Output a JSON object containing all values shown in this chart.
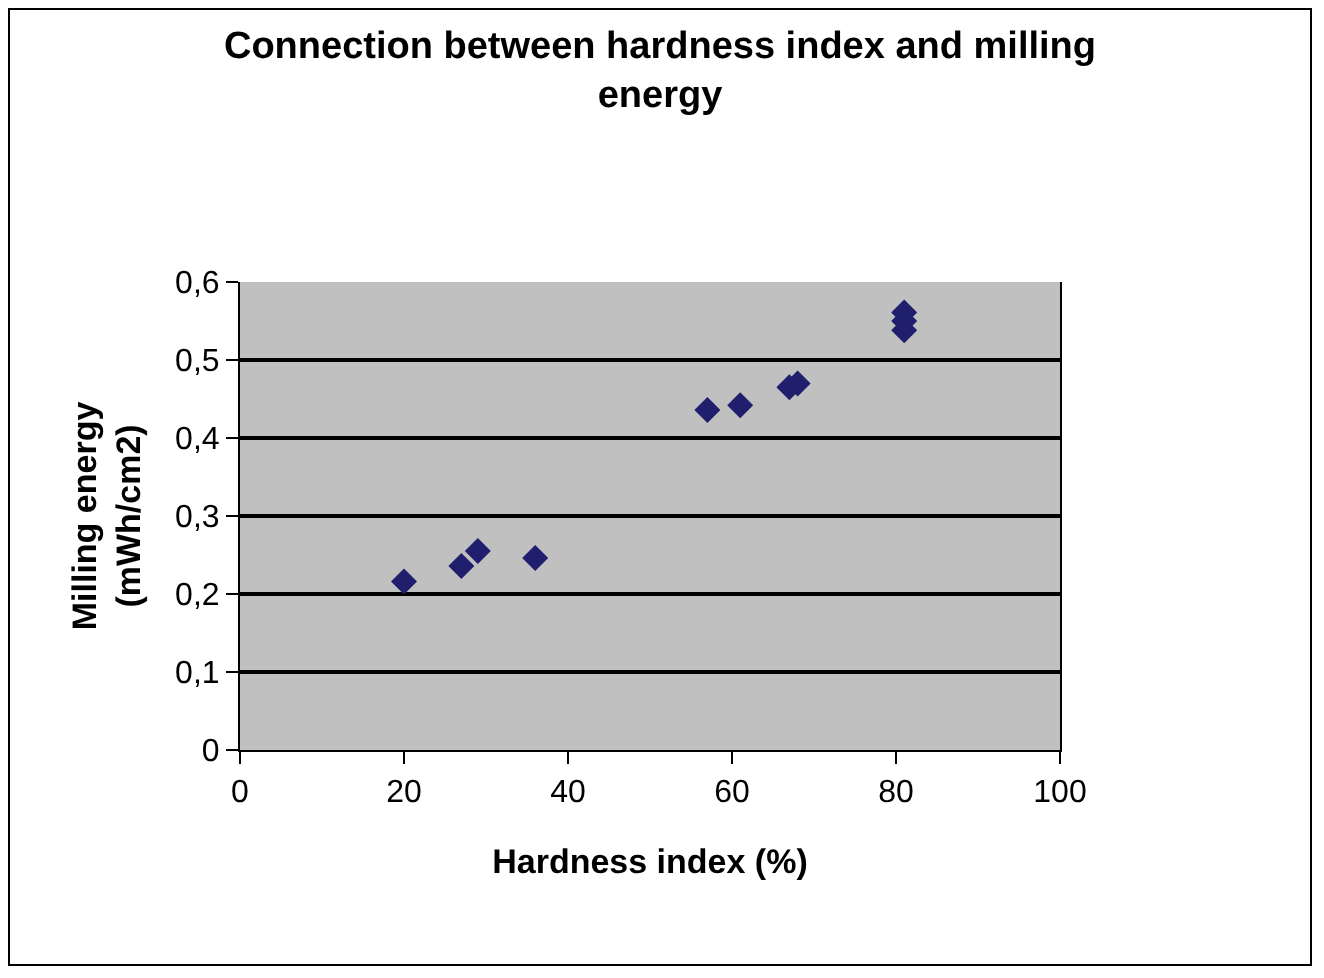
{
  "chart_data": {
    "type": "scatter",
    "title": "Connection between hardness index and milling energy",
    "xlabel": "Hardness index (%)",
    "ylabel": "Milling energy (mWh/cm2)",
    "x": [
      20,
      27,
      29,
      36,
      57,
      61,
      67,
      68,
      81,
      81,
      81
    ],
    "values": [
      0.216,
      0.236,
      0.255,
      0.246,
      0.436,
      0.442,
      0.465,
      0.47,
      0.561,
      0.55,
      0.538
    ],
    "color": "#1f1f6e",
    "marker": "diamond",
    "xlim": [
      0,
      100
    ],
    "xticks": [
      0,
      20,
      40,
      60,
      80,
      100
    ],
    "ylim": [
      0,
      0.6
    ],
    "yticks": [
      {
        "value": 0,
        "label": "0"
      },
      {
        "value": 0.1,
        "label": "0,1"
      },
      {
        "value": 0.2,
        "label": "0,2"
      },
      {
        "value": 0.3,
        "label": "0,3"
      },
      {
        "value": 0.4,
        "label": "0,4"
      },
      {
        "value": 0.5,
        "label": "0,5"
      },
      {
        "value": 0.6,
        "label": "0,6"
      }
    ],
    "grid": "y",
    "legend": false
  }
}
